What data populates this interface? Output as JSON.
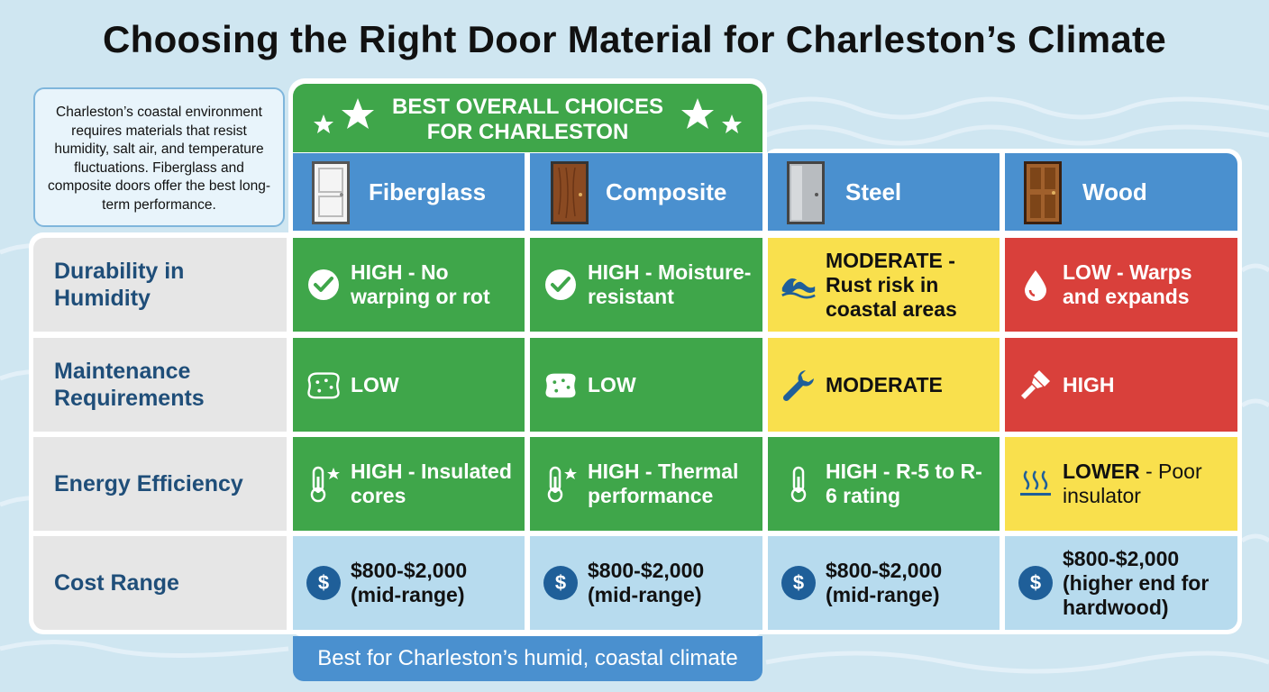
{
  "title": "Choosing the Right Door Material for Charleston’s Climate",
  "intro": "Charleston’s coastal environment requires materials that resist humidity, salt air, and temperature fluctuations. Fiberglass and composite doors offer the best long-term performance.",
  "best_header": {
    "line1": "BEST OVERALL CHOICES",
    "line2": "FOR CHARLESTON"
  },
  "footer": "Best for Charleston’s humid, coastal climate",
  "materials": [
    {
      "name": "Fiberglass",
      "door_icon": "white-panel-door-icon"
    },
    {
      "name": "Composite",
      "door_icon": "wood-grain-door-icon"
    },
    {
      "name": "Steel",
      "door_icon": "steel-door-icon"
    },
    {
      "name": "Wood",
      "door_icon": "wood-panel-door-icon"
    }
  ],
  "rows": [
    {
      "label": "Durability in Humidity",
      "cells": [
        {
          "bold": "HIGH - No warping or rot",
          "rest": "",
          "icon": "checkmark-icon",
          "color": "green"
        },
        {
          "bold": "HIGH - Moisture-resistant",
          "rest": "",
          "icon": "checkmark-icon",
          "color": "green"
        },
        {
          "bold": "MODERATE - Rust risk in coastal areas",
          "rest": "",
          "icon": "wave-icon",
          "color": "yellow"
        },
        {
          "bold": "LOW - Warps and expands",
          "rest": "",
          "icon": "water-drop-icon",
          "color": "red"
        }
      ]
    },
    {
      "label": "Maintenance Requirements",
      "cells": [
        {
          "bold": "LOW",
          "rest": "",
          "icon": "sponge-icon",
          "color": "green"
        },
        {
          "bold": "LOW",
          "rest": "",
          "icon": "sponge-icon",
          "color": "green"
        },
        {
          "bold": "MODERATE",
          "rest": "",
          "icon": "wrench-icon",
          "color": "yellow"
        },
        {
          "bold": "HIGH",
          "rest": "",
          "icon": "paintbrush-icon",
          "color": "red"
        }
      ]
    },
    {
      "label": "Energy Efficiency",
      "cells": [
        {
          "bold": "HIGH - Insulated cores",
          "rest": "",
          "icon": "thermometer-star-icon",
          "color": "green"
        },
        {
          "bold": "HIGH - Thermal performance",
          "rest": "",
          "icon": "thermometer-star-icon",
          "color": "green"
        },
        {
          "bold": "HIGH - R-5 to R-6 rating",
          "rest": "",
          "icon": "thermometer-icon",
          "color": "green"
        },
        {
          "bold": "LOWER",
          "rest": " - Poor insulator",
          "icon": "heat-waves-icon",
          "color": "yellow"
        }
      ]
    },
    {
      "label": "Cost Range",
      "cells": [
        {
          "bold": "$800-$2,000 (mid-range)",
          "rest": "",
          "icon": "dollar-icon",
          "color": "blue"
        },
        {
          "bold": "$800-$2,000 (mid-range)",
          "rest": "",
          "icon": "dollar-icon",
          "color": "blue"
        },
        {
          "bold": "$800-$2,000 (mid-range)",
          "rest": "",
          "icon": "dollar-icon",
          "color": "blue"
        },
        {
          "bold": "$800-$2,000 (higher end for hardwood)",
          "rest": "",
          "icon": "dollar-icon",
          "color": "blue"
        }
      ]
    }
  ],
  "colors": {
    "green": "#3fa64a",
    "yellow": "#f9e04d",
    "red": "#d9403b",
    "blue_cell": "#b7dbee",
    "header_blue": "#4a90cf",
    "label_text": "#1f4e79"
  }
}
